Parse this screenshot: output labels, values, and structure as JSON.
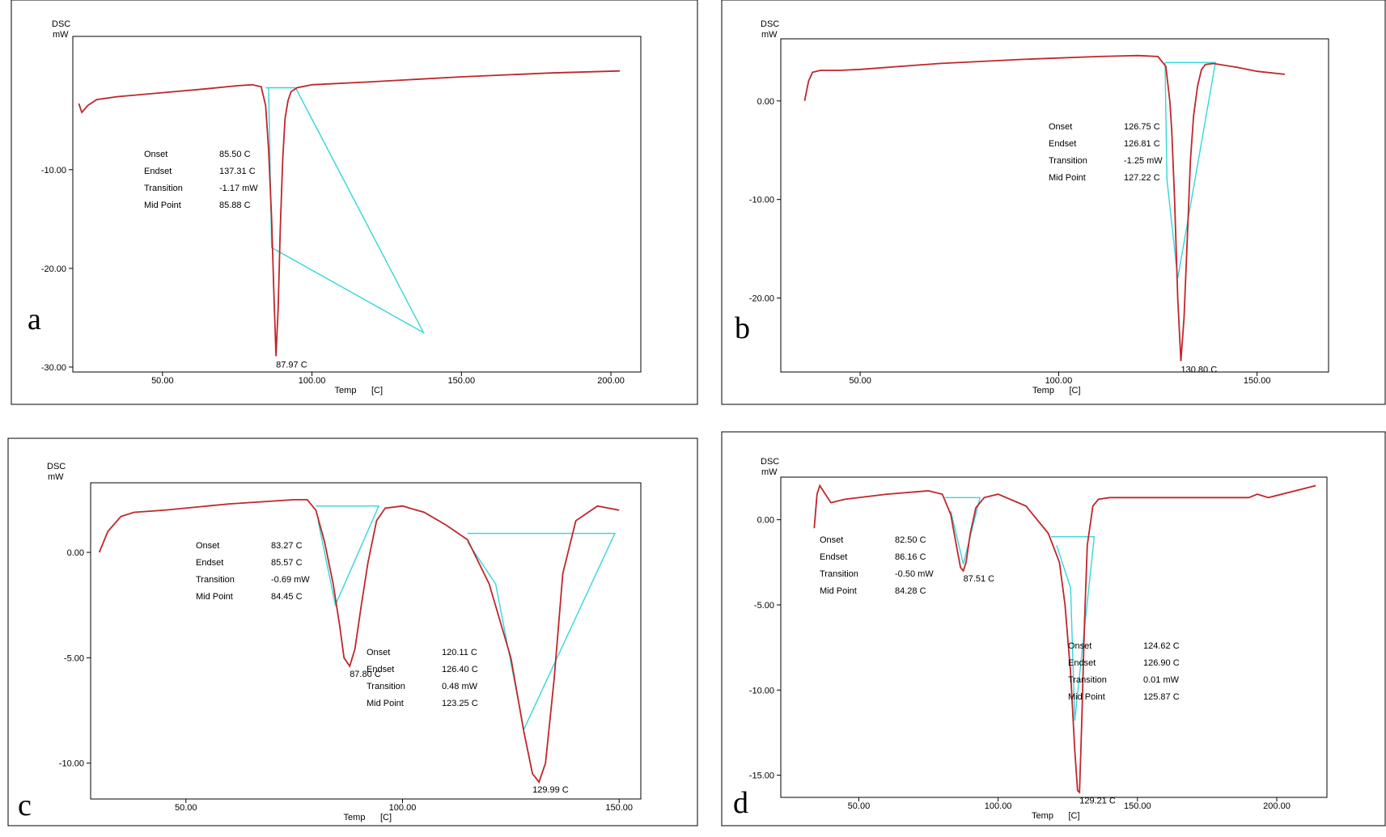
{
  "chart_data": [
    {
      "type": "line",
      "panel_label": "a",
      "ylabel": "DSC",
      "yunit": "mW",
      "xlabel": "Temp",
      "xunit": "[C]",
      "xlim": [
        20,
        210
      ],
      "ylim": [
        -30.5,
        3.5
      ],
      "xticks": [
        "50.00",
        "100.00",
        "150.00",
        "200.00"
      ],
      "yticks": [
        "-10.00",
        "-20.00",
        "-30.00"
      ],
      "series": [
        {
          "x": [
            22,
            23,
            25,
            28,
            35,
            50,
            65,
            75,
            80,
            83,
            84.5,
            85.5,
            86.5,
            87.2,
            87.97,
            88.7,
            89.4,
            90.2,
            91,
            92,
            93,
            95,
            100,
            120,
            150,
            180,
            203
          ],
          "y": [
            -3.3,
            -4.2,
            -3.5,
            -2.9,
            -2.6,
            -2.2,
            -1.8,
            -1.5,
            -1.4,
            -1.6,
            -3.5,
            -8,
            -15,
            -22,
            -28.9,
            -24,
            -16,
            -9,
            -4.8,
            -3,
            -2.1,
            -1.7,
            -1.4,
            -1.1,
            -0.6,
            -0.2,
            0
          ]
        }
      ],
      "peak": {
        "x": 87.97,
        "y": -28.9,
        "label": "87.97  C"
      },
      "table": [
        {
          "name": "Onset",
          "value": "85.50  C"
        },
        {
          "name": "Endset",
          "value": "137.31  C"
        },
        {
          "name": "Transition",
          "value": "-1.17  mW"
        },
        {
          "name": "Mid Point",
          "value": "85.88  C"
        }
      ]
    },
    {
      "type": "line",
      "panel_label": "b",
      "ylabel": "DSC",
      "yunit": "mW",
      "xlabel": "Temp",
      "xunit": "[C]",
      "xlim": [
        30,
        168
      ],
      "ylim": [
        -27.5,
        6.3
      ],
      "xticks": [
        "50.00",
        "100.00",
        "150.00"
      ],
      "yticks": [
        "0.00",
        "-10.00",
        "-20.00"
      ],
      "series": [
        {
          "x": [
            36,
            37,
            38,
            40,
            45,
            50,
            70,
            90,
            110,
            120,
            125,
            127,
            128,
            128.5,
            129.2,
            130,
            130.8,
            131.6,
            132.4,
            133.2,
            134,
            135,
            136,
            137,
            139,
            145,
            150,
            157
          ],
          "y": [
            0,
            2,
            2.9,
            3.1,
            3.1,
            3.2,
            3.8,
            4.2,
            4.5,
            4.6,
            4.5,
            3.5,
            0,
            -3,
            -10,
            -20,
            -26.4,
            -22,
            -14,
            -6,
            -1.5,
            1.5,
            3.2,
            3.7,
            3.8,
            3.4,
            3.0,
            2.7
          ]
        }
      ],
      "peak": {
        "x": 130.8,
        "y": -26.4,
        "label": "130.80  C"
      },
      "table": [
        {
          "name": "Onset",
          "value": "126.75  C"
        },
        {
          "name": "Endset",
          "value": "126.81  C"
        },
        {
          "name": "Transition",
          "value": "-1.25  mW"
        },
        {
          "name": "Mid Point",
          "value": "127.22  C"
        }
      ]
    },
    {
      "type": "line",
      "panel_label": "c",
      "ylabel": "DSC",
      "yunit": "mW",
      "xlabel": "Temp",
      "xunit": "[C]",
      "xlim": [
        28,
        155
      ],
      "ylim": [
        -11.7,
        3.3
      ],
      "xticks": [
        "50.00",
        "100.00",
        "150.00"
      ],
      "yticks": [
        "0.00",
        "-5.00",
        "-10.00"
      ],
      "series": [
        {
          "x": [
            30,
            32,
            35,
            38,
            45,
            60,
            75,
            78,
            80,
            82,
            84,
            85.5,
            86.5,
            87.8,
            89,
            90.5,
            92,
            94,
            96,
            100,
            105,
            110,
            115,
            120,
            125,
            128,
            130,
            131.5,
            133,
            135,
            137,
            140,
            145,
            150
          ],
          "y": [
            0,
            1,
            1.7,
            1.9,
            2.0,
            2.3,
            2.5,
            2.5,
            2.0,
            0.5,
            -1.5,
            -3.5,
            -5.0,
            -5.4,
            -4.6,
            -2.5,
            -0.5,
            1.5,
            2.1,
            2.2,
            1.9,
            1.3,
            0.6,
            -1.5,
            -5.0,
            -8.5,
            -10.5,
            -10.9,
            -10.0,
            -6.0,
            -1.0,
            1.5,
            2.2,
            2.0
          ]
        }
      ],
      "peak": {
        "x": 87.8,
        "y": -5.4,
        "label": "87.80  C"
      },
      "peak2": {
        "x": 129.99,
        "y": -10.9,
        "label": "129.99  C"
      },
      "table": [
        {
          "name": "Onset",
          "value": "83.27  C"
        },
        {
          "name": "Endset",
          "value": "85.57  C"
        },
        {
          "name": "Transition",
          "value": "-0.69  mW"
        },
        {
          "name": "Mid Point",
          "value": "84.45  C"
        }
      ],
      "table2": [
        {
          "name": "Onset",
          "value": "120.11  C"
        },
        {
          "name": "Endset",
          "value": "126.40  C"
        },
        {
          "name": "Transition",
          "value": "0.48  mW"
        },
        {
          "name": "Mid Point",
          "value": "123.25  C"
        }
      ]
    },
    {
      "type": "line",
      "panel_label": "d",
      "ylabel": "DSC",
      "yunit": "mW",
      "xlabel": "Temp",
      "xunit": "[C]",
      "xlim": [
        22,
        218
      ],
      "ylim": [
        -16.3,
        2.5
      ],
      "xticks": [
        "50.00",
        "100.00",
        "150.00",
        "200.00"
      ],
      "yticks": [
        "0.00",
        "-5.00",
        "-10.00",
        "-15.00"
      ],
      "series": [
        {
          "x": [
            34,
            35,
            36,
            38,
            40,
            45,
            60,
            75,
            80,
            83,
            85,
            86.5,
            87.51,
            88.5,
            90,
            92,
            95,
            100,
            110,
            118,
            122,
            124,
            126,
            127.5,
            128.5,
            129.21,
            130,
            131,
            132,
            134,
            136,
            140,
            160,
            190,
            193,
            197,
            214
          ],
          "y": [
            -0.5,
            1.5,
            2.0,
            1.5,
            1.0,
            1.2,
            1.5,
            1.7,
            1.5,
            0.3,
            -1.5,
            -2.8,
            -3.0,
            -2.5,
            -0.8,
            0.7,
            1.3,
            1.5,
            0.8,
            -0.8,
            -2.5,
            -5.0,
            -9.0,
            -13.5,
            -15.9,
            -16.0,
            -12.0,
            -6.0,
            -1.5,
            0.8,
            1.2,
            1.3,
            1.3,
            1.3,
            1.5,
            1.3,
            2.0
          ]
        }
      ],
      "peak": {
        "x": 87.51,
        "y": -3.0,
        "label": "87.51  C"
      },
      "peak2": {
        "x": 129.21,
        "y": -16.0,
        "label": "129.21  C"
      },
      "table": [
        {
          "name": "Onset",
          "value": "82.50  C"
        },
        {
          "name": "Endset",
          "value": "86.16  C"
        },
        {
          "name": "Transition",
          "value": "-0.50  mW"
        },
        {
          "name": "Mid Point",
          "value": "84.28  C"
        }
      ],
      "table2": [
        {
          "name": "Onset",
          "value": "124.62  C"
        },
        {
          "name": "Endset",
          "value": "126.90  C"
        },
        {
          "name": "Transition",
          "value": "0.01  mW"
        },
        {
          "name": "Mid Point",
          "value": "125.87  C"
        }
      ]
    }
  ],
  "baselines": [
    [
      [
        [
          84.5,
          -1.7
        ],
        [
          94.5,
          -1.7
        ],
        [
          137.3,
          -26.5
        ],
        [
          86.5,
          -17.9
        ],
        [
          85.5,
          -1.7
        ]
      ]
    ],
    [
      [
        [
          127,
          3.9
        ],
        [
          139.5,
          3.9
        ],
        [
          130,
          -18
        ],
        [
          127.3,
          -8
        ],
        [
          126.8,
          3.9
        ]
      ]
    ],
    [
      [
        [
          80,
          2.2
        ],
        [
          94.5,
          2.2
        ],
        [
          84.5,
          -2.5
        ],
        [
          80.5,
          1.5
        ]
      ],
      [
        [
          115,
          0.9
        ],
        [
          149,
          0.9
        ],
        [
          128,
          -8.4
        ],
        [
          121.5,
          -1.5
        ],
        [
          115,
          0.5
        ]
      ]
    ],
    [
      [
        [
          81,
          1.3
        ],
        [
          93.5,
          1.3
        ],
        [
          87.5,
          -2.6
        ],
        [
          83,
          0.5
        ]
      ],
      [
        [
          119,
          -1.0
        ],
        [
          134.5,
          -1.0
        ],
        [
          127.5,
          -11.8
        ],
        [
          126,
          -4
        ],
        [
          121,
          -1.5
        ]
      ]
    ]
  ]
}
